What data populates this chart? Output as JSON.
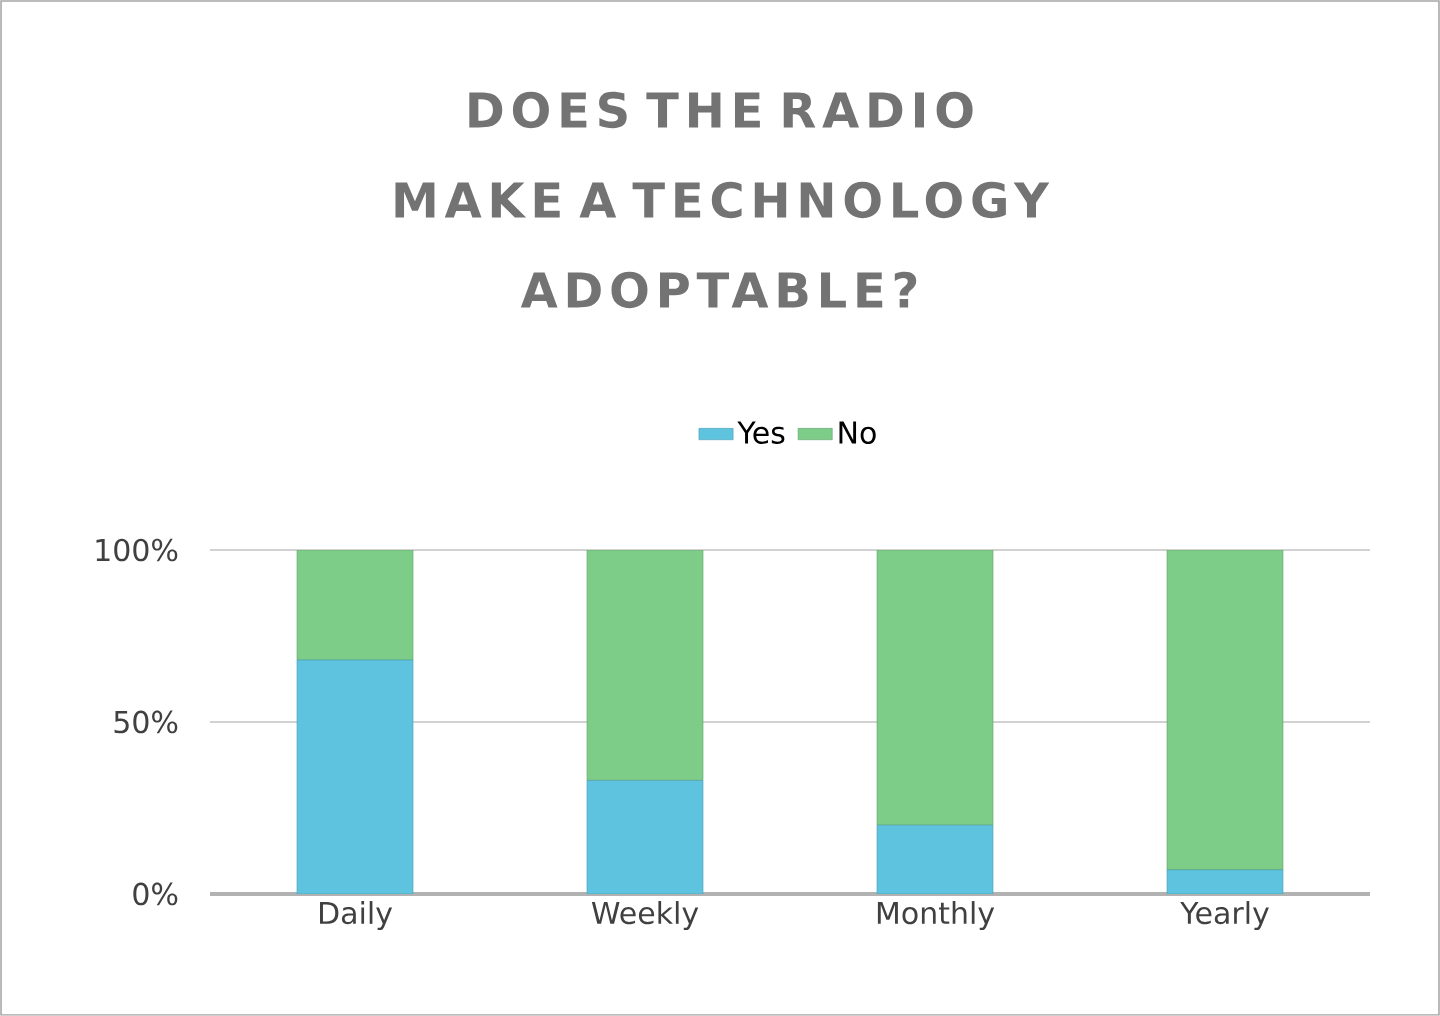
{
  "chart_data": {
    "type": "bar",
    "title": "DOES THE RADIO MAKE A TECHNOLOGY ADOPTABLE?",
    "categories": [
      "Daily",
      "Weekly",
      "Monthly",
      "Yearly"
    ],
    "series": [
      {
        "name": "Yes",
        "color": "#5ec3df",
        "values": [
          68,
          33,
          20,
          7
        ]
      },
      {
        "name": "No",
        "color": "#7dcc87",
        "values": [
          32,
          67,
          80,
          93
        ]
      }
    ],
    "stacked": true,
    "ylim": [
      0,
      100
    ],
    "yticks": [
      {
        "value": 0,
        "label": "0%"
      },
      {
        "value": 50,
        "label": "50%"
      },
      {
        "value": 100,
        "label": "100%"
      }
    ],
    "grid": "y",
    "legend": "top"
  }
}
